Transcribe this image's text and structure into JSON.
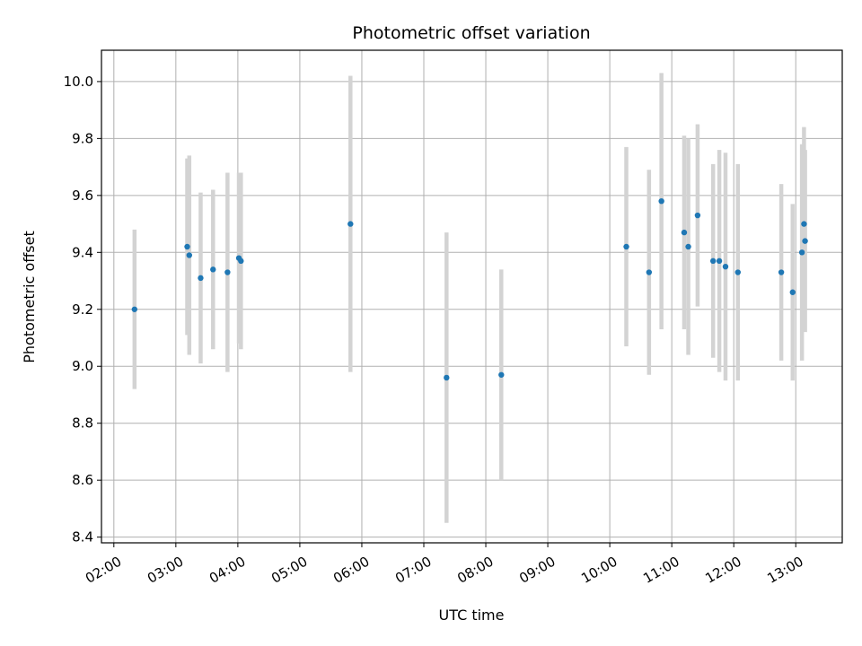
{
  "chart_data": {
    "type": "scatter",
    "title": "Photometric offset variation",
    "xlabel": "UTC time",
    "ylabel": "Photometric offset",
    "grid": true,
    "xlim": [
      "01:48",
      "13:45"
    ],
    "ylim": [
      8.38,
      10.11
    ],
    "x_ticks": [
      "02:00",
      "03:00",
      "04:00",
      "05:00",
      "06:00",
      "07:00",
      "08:00",
      "09:00",
      "10:00",
      "11:00",
      "12:00",
      "13:00"
    ],
    "y_ticks": [
      "8.4",
      "8.6",
      "8.8",
      "9.0",
      "9.2",
      "9.4",
      "9.6",
      "9.8",
      "10.0"
    ],
    "x_tick_rotation_deg": 30,
    "point_color": "#1f77b4",
    "errorbar_color": "#d3d3d3",
    "series": [
      {
        "points": [
          {
            "t": "02:20",
            "y": 9.2,
            "err": 0.28
          },
          {
            "t": "03:11",
            "y": 9.42,
            "err": 0.31
          },
          {
            "t": "03:13",
            "y": 9.39,
            "err": 0.35
          },
          {
            "t": "03:24",
            "y": 9.31,
            "err": 0.3
          },
          {
            "t": "03:36",
            "y": 9.34,
            "err": 0.28
          },
          {
            "t": "03:50",
            "y": 9.33,
            "err": 0.35
          },
          {
            "t": "04:01",
            "y": 9.38,
            "err": 0.3
          },
          {
            "t": "04:03",
            "y": 9.37,
            "err": 0.31
          },
          {
            "t": "05:49",
            "y": 9.5,
            "err": 0.52
          },
          {
            "t": "07:22",
            "y": 8.96,
            "err": 0.51
          },
          {
            "t": "08:15",
            "y": 8.97,
            "err": 0.37
          },
          {
            "t": "10:16",
            "y": 9.42,
            "err": 0.35
          },
          {
            "t": "10:38",
            "y": 9.33,
            "err": 0.36
          },
          {
            "t": "10:50",
            "y": 9.58,
            "err": 0.45
          },
          {
            "t": "11:12",
            "y": 9.47,
            "err": 0.34
          },
          {
            "t": "11:16",
            "y": 9.42,
            "err": 0.38
          },
          {
            "t": "11:25",
            "y": 9.53,
            "err": 0.32
          },
          {
            "t": "11:40",
            "y": 9.37,
            "err": 0.34
          },
          {
            "t": "11:46",
            "y": 9.37,
            "err": 0.39
          },
          {
            "t": "11:52",
            "y": 9.35,
            "err": 0.4
          },
          {
            "t": "12:04",
            "y": 9.33,
            "err": 0.38
          },
          {
            "t": "12:46",
            "y": 9.33,
            "err": 0.31
          },
          {
            "t": "12:57",
            "y": 9.26,
            "err": 0.31
          },
          {
            "t": "13:06",
            "y": 9.4,
            "err": 0.38
          },
          {
            "t": "13:08",
            "y": 9.5,
            "err": 0.34
          },
          {
            "t": "13:09",
            "y": 9.44,
            "err": 0.32
          }
        ]
      }
    ]
  }
}
